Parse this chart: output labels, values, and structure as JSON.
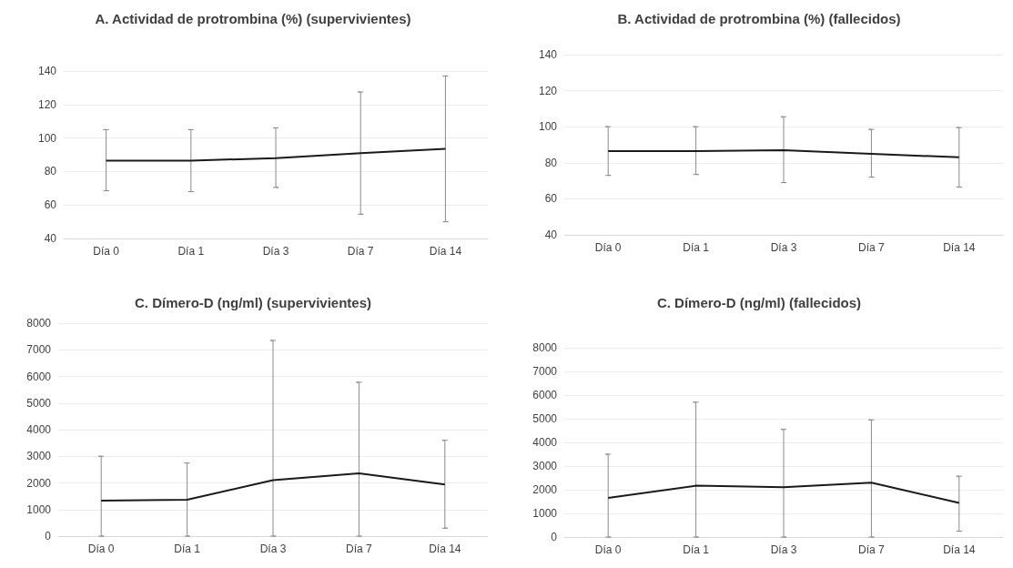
{
  "chart_data": [
    {
      "type": "line",
      "title": "A. Actividad de protrombina (%) (supervivientes)",
      "categories": [
        "Día 0",
        "Día 1",
        "Día 3",
        "Día 7",
        "Día 14"
      ],
      "values": [
        86.5,
        86.5,
        88,
        91,
        93.5
      ],
      "errors": [
        [
          68.5,
          105
        ],
        [
          68,
          105
        ],
        [
          70.5,
          106
        ],
        [
          54.5,
          127.5
        ],
        [
          50,
          137
        ]
      ],
      "color": "#1a1a1a",
      "ylim": [
        40,
        140
      ],
      "yticks": [
        40,
        60,
        80,
        100,
        120,
        140
      ],
      "grid": "y",
      "marker": "none"
    },
    {
      "type": "line",
      "title": "B. Actividad de protrombina (%) (fallecidos)",
      "categories": [
        "Día 0",
        "Día 1",
        "Día 3",
        "Día 7",
        "Día 14"
      ],
      "values": [
        86.5,
        86.5,
        87,
        85,
        83
      ],
      "errors": [
        [
          73,
          100
        ],
        [
          73.5,
          100
        ],
        [
          69,
          105.5
        ],
        [
          72,
          98.5
        ],
        [
          66.5,
          99.5
        ]
      ],
      "color": "#1a1a1a",
      "ylim": [
        40,
        140
      ],
      "yticks": [
        40,
        60,
        80,
        100,
        120,
        140
      ],
      "grid": "y",
      "marker": "none"
    },
    {
      "type": "line",
      "title": "C. Dímero-D (ng/ml) (supervivientes)",
      "categories": [
        "Día 0",
        "Día 1",
        "Día 3",
        "Día 7",
        "Día 14"
      ],
      "values": [
        1330,
        1370,
        2100,
        2360,
        1940
      ],
      "errors": [
        [
          0,
          3000
        ],
        [
          0,
          2750
        ],
        [
          0,
          7350
        ],
        [
          0,
          5780
        ],
        [
          300,
          3600
        ]
      ],
      "color": "#1a1a1a",
      "ylim": [
        0,
        8000
      ],
      "yticks": [
        0,
        1000,
        2000,
        3000,
        4000,
        5000,
        6000,
        7000,
        8000
      ],
      "grid": "y",
      "marker": "none"
    },
    {
      "type": "line",
      "title": "C. Dímero-D (ng/ml) (fallecidos)",
      "categories": [
        "Día 0",
        "Día 1",
        "Día 3",
        "Día 7",
        "Día 14"
      ],
      "values": [
        1650,
        2170,
        2110,
        2300,
        1440
      ],
      "errors": [
        [
          0,
          3500
        ],
        [
          0,
          5700
        ],
        [
          0,
          4550
        ],
        [
          0,
          4950
        ],
        [
          250,
          2570
        ]
      ],
      "color": "#1a1a1a",
      "ylim": [
        0,
        8000
      ],
      "yticks": [
        0,
        1000,
        2000,
        3000,
        4000,
        5000,
        6000,
        7000,
        8000
      ],
      "grid": "y",
      "marker": "none"
    }
  ]
}
